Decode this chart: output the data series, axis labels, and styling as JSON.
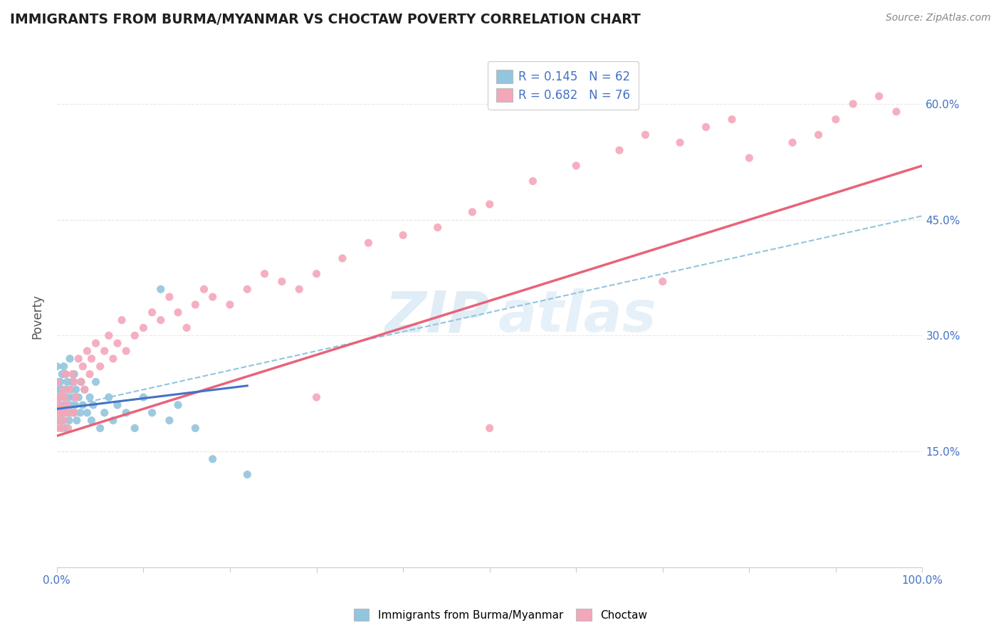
{
  "title": "IMMIGRANTS FROM BURMA/MYANMAR VS CHOCTAW POVERTY CORRELATION CHART",
  "source_text": "Source: ZipAtlas.com",
  "ylabel": "Poverty",
  "legend_blue_r": "R = 0.145",
  "legend_blue_n": "N = 62",
  "legend_pink_r": "R = 0.682",
  "legend_pink_n": "N = 76",
  "xlim": [
    0,
    1
  ],
  "ylim": [
    0,
    0.65
  ],
  "y_ticks": [
    0.15,
    0.3,
    0.45,
    0.6
  ],
  "y_tick_labels": [
    "15.0%",
    "30.0%",
    "45.0%",
    "60.0%"
  ],
  "blue_color": "#92C5DE",
  "pink_color": "#F4A7B9",
  "blue_line_color": "#4472C4",
  "pink_line_color": "#E8637A",
  "dashed_line_color": "#92C5DE",
  "title_color": "#1F1F1F",
  "source_color": "#888888",
  "tick_label_color": "#4472C4",
  "background_color": "#FFFFFF",
  "grid_color": "#E8E8E8",
  "blue_scatter_x": [
    0.0,
    0.0,
    0.0,
    0.0,
    0.0,
    0.002,
    0.002,
    0.003,
    0.003,
    0.004,
    0.004,
    0.005,
    0.005,
    0.006,
    0.006,
    0.007,
    0.008,
    0.008,
    0.009,
    0.01,
    0.01,
    0.01,
    0.012,
    0.012,
    0.013,
    0.014,
    0.015,
    0.015,
    0.016,
    0.017,
    0.018,
    0.019,
    0.02,
    0.02,
    0.021,
    0.022,
    0.023,
    0.025,
    0.027,
    0.028,
    0.03,
    0.032,
    0.035,
    0.038,
    0.04,
    0.042,
    0.045,
    0.05,
    0.055,
    0.06,
    0.065,
    0.07,
    0.08,
    0.09,
    0.1,
    0.11,
    0.12,
    0.13,
    0.14,
    0.16,
    0.18,
    0.22
  ],
  "blue_scatter_y": [
    0.19,
    0.21,
    0.22,
    0.24,
    0.26,
    0.2,
    0.23,
    0.19,
    0.22,
    0.21,
    0.24,
    0.18,
    0.23,
    0.2,
    0.25,
    0.19,
    0.22,
    0.26,
    0.21,
    0.18,
    0.23,
    0.25,
    0.2,
    0.24,
    0.22,
    0.19,
    0.21,
    0.27,
    0.23,
    0.2,
    0.24,
    0.22,
    0.2,
    0.25,
    0.21,
    0.23,
    0.19,
    0.22,
    0.2,
    0.24,
    0.21,
    0.23,
    0.2,
    0.22,
    0.19,
    0.21,
    0.24,
    0.18,
    0.2,
    0.22,
    0.19,
    0.21,
    0.2,
    0.18,
    0.22,
    0.2,
    0.36,
    0.19,
    0.21,
    0.18,
    0.14,
    0.12
  ],
  "pink_scatter_x": [
    0.0,
    0.0,
    0.0,
    0.0,
    0.002,
    0.003,
    0.004,
    0.005,
    0.006,
    0.007,
    0.008,
    0.009,
    0.01,
    0.01,
    0.012,
    0.013,
    0.015,
    0.016,
    0.018,
    0.02,
    0.02,
    0.022,
    0.025,
    0.028,
    0.03,
    0.032,
    0.035,
    0.038,
    0.04,
    0.045,
    0.05,
    0.055,
    0.06,
    0.065,
    0.07,
    0.075,
    0.08,
    0.09,
    0.1,
    0.11,
    0.12,
    0.13,
    0.14,
    0.15,
    0.16,
    0.17,
    0.18,
    0.2,
    0.22,
    0.24,
    0.26,
    0.28,
    0.3,
    0.33,
    0.36,
    0.4,
    0.44,
    0.48,
    0.5,
    0.55,
    0.6,
    0.65,
    0.68,
    0.72,
    0.75,
    0.78,
    0.8,
    0.85,
    0.88,
    0.9,
    0.92,
    0.95,
    0.97,
    0.5,
    0.7,
    0.3
  ],
  "pink_scatter_y": [
    0.18,
    0.2,
    0.22,
    0.24,
    0.19,
    0.21,
    0.22,
    0.18,
    0.2,
    0.23,
    0.19,
    0.22,
    0.2,
    0.25,
    0.21,
    0.18,
    0.23,
    0.2,
    0.25,
    0.2,
    0.24,
    0.22,
    0.27,
    0.24,
    0.26,
    0.23,
    0.28,
    0.25,
    0.27,
    0.29,
    0.26,
    0.28,
    0.3,
    0.27,
    0.29,
    0.32,
    0.28,
    0.3,
    0.31,
    0.33,
    0.32,
    0.35,
    0.33,
    0.31,
    0.34,
    0.36,
    0.35,
    0.34,
    0.36,
    0.38,
    0.37,
    0.36,
    0.38,
    0.4,
    0.42,
    0.43,
    0.44,
    0.46,
    0.47,
    0.5,
    0.52,
    0.54,
    0.56,
    0.55,
    0.57,
    0.58,
    0.53,
    0.55,
    0.56,
    0.58,
    0.6,
    0.61,
    0.59,
    0.18,
    0.37,
    0.22
  ],
  "pink_line_x0": 0.0,
  "pink_line_y0": 0.17,
  "pink_line_x1": 1.0,
  "pink_line_y1": 0.52,
  "blue_line_x0": 0.0,
  "blue_line_y0": 0.205,
  "blue_line_x1": 0.22,
  "blue_line_y1": 0.235,
  "dash_line_x0": 0.0,
  "dash_line_y0": 0.205,
  "dash_line_x1": 1.0,
  "dash_line_y1": 0.455
}
